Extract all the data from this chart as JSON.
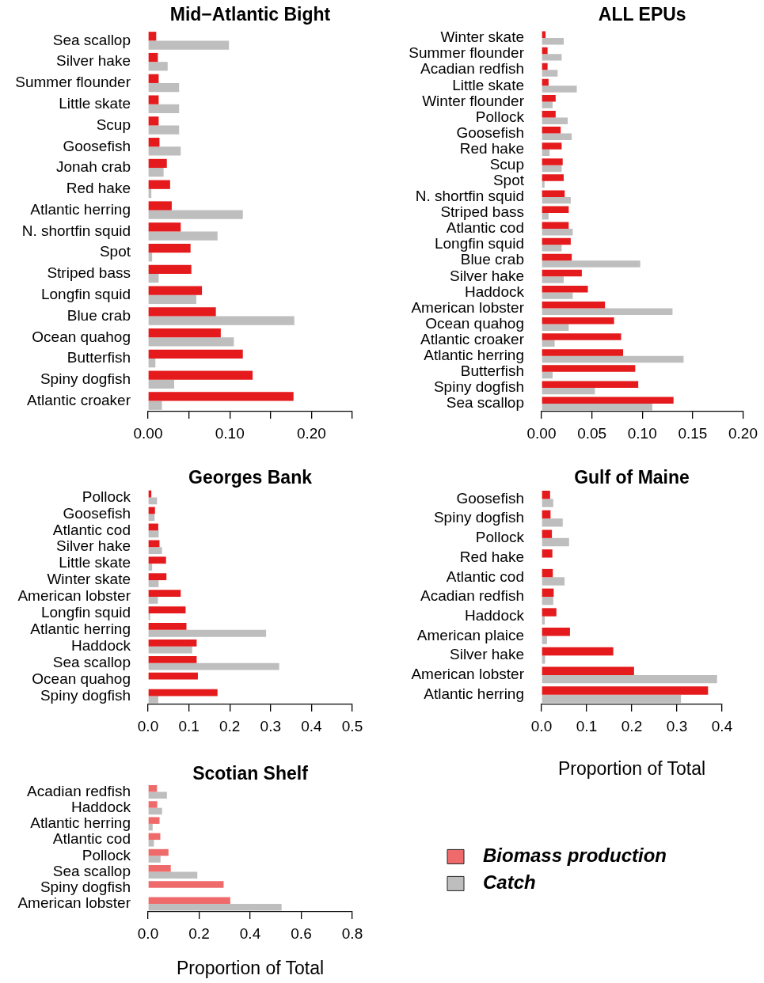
{
  "chart_data": [
    {
      "type": "bar",
      "orientation": "horizontal",
      "title": "Mid−Atlantic Bight",
      "categories": [
        "Sea scallop",
        "Silver hake",
        "Summer flounder",
        "Little skate",
        "Scup",
        "Goosefish",
        "Jonah crab",
        "Red hake",
        "Atlantic herring",
        "N. shortfin squid",
        "Spot",
        "Striped bass",
        "Longfin squid",
        "Blue crab",
        "Ocean quahog",
        "Butterfish",
        "Spiny dogfish",
        "Atlantic croaker"
      ],
      "series": [
        {
          "color": "#e41a1c",
          "values": [
            0.01,
            0.012,
            0.013,
            0.013,
            0.013,
            0.014,
            0.023,
            0.027,
            0.029,
            0.04,
            0.052,
            0.053,
            0.066,
            0.083,
            0.089,
            0.116,
            0.128,
            0.178
          ]
        },
        {
          "color": "#bebebe",
          "values": [
            0.099,
            0.024,
            0.038,
            0.038,
            0.038,
            0.04,
            0.019,
            0.004,
            0.116,
            0.085,
            0.005,
            0.013,
            0.059,
            0.179,
            0.105,
            0.009,
            0.032,
            0.017
          ]
        }
      ],
      "xlim": [
        0,
        0.25
      ],
      "xticks": [
        {
          "value": 0,
          "label": "0.00"
        },
        {
          "value": 0.05,
          "label": null
        },
        {
          "value": 0.1,
          "label": "0.10"
        },
        {
          "value": 0.15,
          "label": null
        },
        {
          "value": 0.2,
          "label": "0.20"
        },
        {
          "value": 0.25,
          "label": null
        }
      ]
    },
    {
      "type": "bar",
      "orientation": "horizontal",
      "title": "ALL EPUs",
      "categories": [
        "Winter skate",
        "Summer flounder",
        "Acadian redfish",
        "Little skate",
        "Winter flounder",
        "Pollock",
        "Goosefish",
        "Red hake",
        "Scup",
        "Spot",
        "N. shortfin squid",
        "Striped bass",
        "Atlantic cod",
        "Longfin squid",
        "Blue crab",
        "Silver hake",
        "Haddock",
        "American lobster",
        "Ocean quahog",
        "Atlantic croaker",
        "Atlantic herring",
        "Butterfish",
        "Spiny dogfish",
        "Sea scallop"
      ],
      "series": [
        {
          "color": "#e41a1c",
          "values": [
            0.004,
            0.006,
            0.006,
            0.007,
            0.014,
            0.014,
            0.019,
            0.02,
            0.021,
            0.022,
            0.023,
            0.027,
            0.027,
            0.029,
            0.03,
            0.04,
            0.046,
            0.063,
            0.072,
            0.079,
            0.081,
            0.093,
            0.096,
            0.131
          ]
        },
        {
          "color": "#bebebe",
          "values": [
            0.022,
            0.02,
            0.016,
            0.035,
            0.011,
            0.026,
            0.03,
            0.008,
            0.02,
            0.003,
            0.029,
            0.007,
            0.031,
            0.02,
            0.098,
            0.022,
            0.031,
            0.13,
            0.027,
            0.013,
            0.141,
            0.011,
            0.053,
            0.11
          ]
        }
      ],
      "xlim": [
        0,
        0.2
      ],
      "xticks": [
        {
          "value": 0,
          "label": "0.00"
        },
        {
          "value": 0.05,
          "label": "0.05"
        },
        {
          "value": 0.1,
          "label": "0.10"
        },
        {
          "value": 0.15,
          "label": "0.15"
        },
        {
          "value": 0.2,
          "label": "0.20"
        }
      ]
    },
    {
      "type": "bar",
      "orientation": "horizontal",
      "title": "Georges Bank",
      "categories": [
        "Pollock",
        "Goosefish",
        "Atlantic cod",
        "Silver hake",
        "Little skate",
        "Winter skate",
        "American lobster",
        "Longfin squid",
        "Atlantic herring",
        "Haddock",
        "Sea scallop",
        "Ocean quahog",
        "Spiny dogfish"
      ],
      "series": [
        {
          "color": "#e41a1c",
          "values": [
            0.008,
            0.017,
            0.025,
            0.028,
            0.044,
            0.045,
            0.08,
            0.092,
            0.094,
            0.119,
            0.119,
            0.122,
            0.17
          ]
        },
        {
          "color": "#bebebe",
          "values": [
            0.022,
            0.016,
            0.026,
            0.034,
            0.01,
            0.026,
            0.024,
            0.005,
            0.289,
            0.108,
            0.321,
            0,
            0.025
          ]
        }
      ],
      "xlim": [
        0,
        0.5
      ],
      "xticks": [
        {
          "value": 0,
          "label": "0.0"
        },
        0.1,
        0.2,
        0.3,
        0.4,
        0.5
      ]
    },
    {
      "type": "bar",
      "orientation": "horizontal",
      "title": "Gulf of Maine",
      "xlabel": "Proportion of Total",
      "categories": [
        "Goosefish",
        "Spiny dogfish",
        "Pollock",
        "Red hake",
        "Atlantic cod",
        "Acadian redfish",
        "Haddock",
        "American plaice",
        "Silver hake",
        "American lobster",
        "Atlantic herring"
      ],
      "series": [
        {
          "color": "#e41a1c",
          "values": [
            0.019,
            0.02,
            0.023,
            0.024,
            0.025,
            0.027,
            0.033,
            0.063,
            0.159,
            0.205,
            0.369
          ]
        },
        {
          "color": "#bebebe",
          "values": [
            0.026,
            0.047,
            0.061,
            0,
            0.051,
            0.026,
            0.007,
            0.012,
            0.008,
            0.389,
            0.309
          ]
        }
      ],
      "xlim": [
        0,
        0.4
      ],
      "xticks": [
        {
          "value": 0,
          "label": "0.0"
        },
        0.1,
        0.2,
        0.3,
        0.4
      ]
    },
    {
      "type": "bar",
      "orientation": "horizontal",
      "title": "Scotian Shelf",
      "xlabel": "Proportion of Total",
      "legend": "right",
      "categories": [
        "Acadian redfish",
        "Haddock",
        "Atlantic herring",
        "Atlantic cod",
        "Pollock",
        "Sea scallop",
        "Spiny dogfish",
        "American lobster"
      ],
      "series": [
        {
          "name": "Biomass production",
          "color": "#ef6b6b",
          "values": [
            0.035,
            0.036,
            0.045,
            0.048,
            0.08,
            0.089,
            0.296,
            0.322
          ]
        },
        {
          "name": "Catch",
          "color": "#bebebe",
          "values": [
            0.074,
            0.055,
            0.018,
            0.023,
            0.049,
            0.193,
            0,
            0.523
          ]
        }
      ],
      "xlim": [
        0,
        0.8
      ],
      "xticks": [
        {
          "value": 0,
          "label": "0.0"
        },
        0.2,
        0.4,
        0.6,
        0.8
      ]
    }
  ]
}
